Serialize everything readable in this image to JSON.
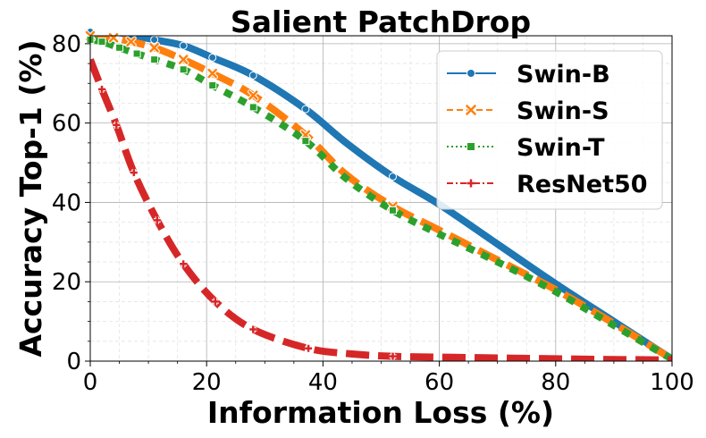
{
  "chart_data": {
    "type": "line",
    "title": "Salient PatchDrop",
    "xlabel": "Information Loss (%)",
    "ylabel": "Accuracy Top-1 (%)",
    "xlim": [
      0,
      100
    ],
    "ylim": [
      0,
      82
    ],
    "xticks": [
      0,
      20,
      40,
      60,
      80,
      100
    ],
    "yticks": [
      0,
      20,
      40,
      60,
      80
    ],
    "grid": true,
    "legend_position": "top-right",
    "series": [
      {
        "name": "Swin-B",
        "color": "#1f77b4",
        "linestyle": "solid",
        "marker": "circle",
        "x": [
          0,
          4,
          11,
          16,
          21,
          28,
          37,
          44,
          52,
          60,
          70,
          80,
          90,
          100
        ],
        "y": [
          83,
          83,
          81,
          79.5,
          76.5,
          72,
          63.5,
          55,
          46.5,
          39.5,
          29.5,
          19.5,
          10,
          0.5
        ],
        "marker_x": [
          0,
          11,
          16,
          21,
          28,
          37,
          52
        ],
        "marker_y": [
          83,
          81,
          79.5,
          76.5,
          72,
          63.5,
          46.5
        ]
      },
      {
        "name": "Swin-S",
        "color": "#ff7f0e",
        "linestyle": "dashed",
        "marker": "x",
        "x": [
          0,
          4,
          7,
          11,
          16,
          21,
          28,
          37,
          44,
          52,
          60,
          70,
          80,
          90,
          100
        ],
        "y": [
          82,
          81.5,
          80.5,
          79,
          76,
          72.5,
          67,
          57,
          47,
          39,
          33,
          25.5,
          18,
          9.5,
          0.5
        ],
        "marker_x": [
          0,
          4,
          7,
          11,
          16,
          21,
          28,
          37,
          52
        ],
        "marker_y": [
          82,
          81.5,
          80.5,
          79,
          76,
          72.5,
          67,
          57,
          39
        ]
      },
      {
        "name": "Swin-T",
        "color": "#2ca02c",
        "linestyle": "dotted",
        "marker": "square",
        "x": [
          0,
          2,
          5,
          8,
          11,
          16,
          21,
          28,
          37,
          44,
          52,
          60,
          70,
          80,
          90,
          100
        ],
        "y": [
          81,
          80.5,
          79,
          77.5,
          76,
          73.5,
          69.5,
          64,
          55.5,
          46,
          38,
          32,
          25,
          17.5,
          9,
          0.5
        ],
        "marker_x": [
          0,
          2,
          5,
          8,
          11,
          16,
          21,
          28,
          37,
          52
        ],
        "marker_y": [
          81,
          80.5,
          79,
          77.5,
          76,
          73.5,
          69.5,
          64,
          55.5,
          38
        ]
      },
      {
        "name": "ResNet50",
        "color": "#d62728",
        "linestyle": "dashdot",
        "marker": "plus",
        "x": [
          0,
          2,
          4.5,
          7.5,
          11.5,
          16,
          21.5,
          28,
          37.5,
          45,
          52,
          60,
          70,
          80,
          90,
          100
        ],
        "y": [
          76,
          68.5,
          59.5,
          47.5,
          35.5,
          24.5,
          15,
          8,
          3.2,
          1.8,
          1.2,
          1,
          0.8,
          0.6,
          0.4,
          0.3
        ],
        "marker_x": [
          2,
          4.5,
          7.5,
          11.5,
          16,
          21.5,
          28,
          37.5,
          52
        ],
        "marker_y": [
          68.5,
          59.5,
          47.5,
          35.5,
          24.5,
          15,
          8,
          3.2,
          1.2
        ]
      }
    ]
  }
}
